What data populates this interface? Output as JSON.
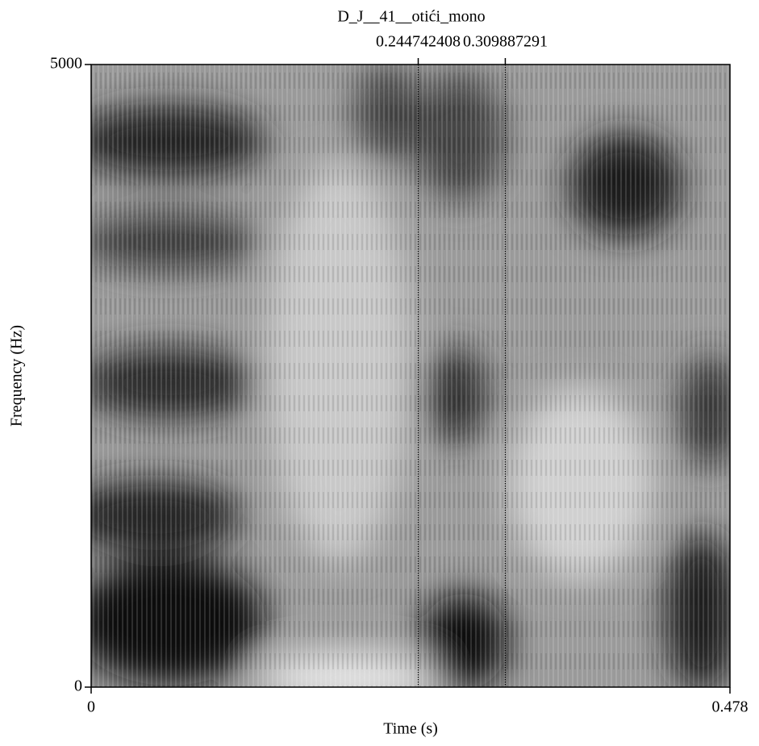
{
  "chart_data": {
    "type": "spectrogram",
    "title": "D_J__41__otići_mono",
    "xlabel": "Time (s)",
    "ylabel": "Frequency (Hz)",
    "xlim": [
      0,
      0.478
    ],
    "xticks": [
      0,
      0.478
    ],
    "ylim": [
      0,
      5000
    ],
    "yticks": [
      0,
      5000
    ],
    "cursors": [
      0.244742408,
      0.309887291
    ]
  }
}
